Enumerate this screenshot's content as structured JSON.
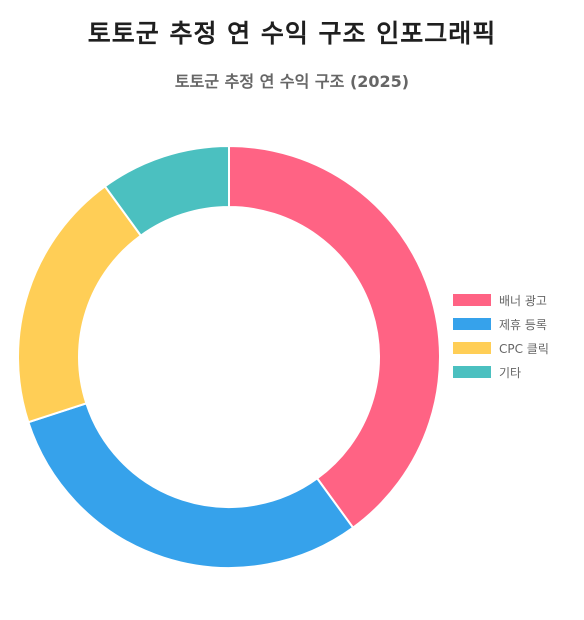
{
  "page": {
    "title": "토토군 추정 연 수익 구조 인포그래픽"
  },
  "chart_data": {
    "type": "pie",
    "variant": "doughnut",
    "title": "토토군 추정 연 수익 구조 (2025)",
    "categories": [
      "배너 광고",
      "제휴 등록",
      "CPC 클릭",
      "기타"
    ],
    "values": [
      40,
      30,
      20,
      10
    ],
    "colors": [
      "#ff6384",
      "#36a2eb",
      "#ffce56",
      "#4bc0c0"
    ],
    "legend_position": "right",
    "start_angle": "top",
    "direction": "clockwise"
  }
}
